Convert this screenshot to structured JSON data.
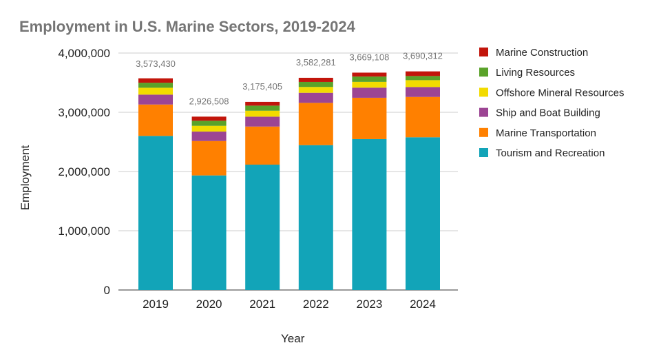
{
  "chart_data": {
    "type": "bar",
    "stacked": true,
    "title": "Employment in U.S. Marine Sectors, 2019-2024",
    "xlabel": "Year",
    "ylabel": "Employment",
    "ylim": [
      0,
      4000000
    ],
    "yticks": [
      0,
      1000000,
      2000000,
      3000000,
      4000000
    ],
    "ytick_labels": [
      "0",
      "1,000,000",
      "2,000,000",
      "3,000,000",
      "4,000,000"
    ],
    "grid": true,
    "legend_position": "right",
    "categories": [
      "2019",
      "2020",
      "2021",
      "2022",
      "2023",
      "2024"
    ],
    "series": [
      {
        "name": "Tourism and Recreation",
        "color": "#12a4b8",
        "values": [
          2601000,
          1934000,
          2116000,
          2445000,
          2547000,
          2578000
        ]
      },
      {
        "name": "Marine Transportation",
        "color": "#ff8000",
        "values": [
          530000,
          581000,
          643000,
          714000,
          698000,
          681000
        ]
      },
      {
        "name": "Ship and Boat Building",
        "color": "#9c4593",
        "values": [
          167000,
          159000,
          167000,
          170000,
          171000,
          167000
        ]
      },
      {
        "name": "Offshore Mineral Resources",
        "color": "#f2db00",
        "values": [
          116000,
          97000,
          100000,
          98000,
          97000,
          116000
        ]
      },
      {
        "name": "Living Resources",
        "color": "#5aa22a",
        "values": [
          85000,
          86000,
          86000,
          85000,
          90000,
          70000
        ]
      },
      {
        "name": "Marine Construction",
        "color": "#c2150b",
        "values": [
          74430,
          69508,
          63405,
          70281,
          66108,
          78312
        ]
      }
    ],
    "totals": [
      3573430,
      2926508,
      3175405,
      3582281,
      3669108,
      3690312
    ],
    "total_labels": [
      "3,573,430",
      "2,926,508",
      "3,175,405",
      "3,582,281",
      "3,669,108",
      "3,690,312"
    ]
  }
}
